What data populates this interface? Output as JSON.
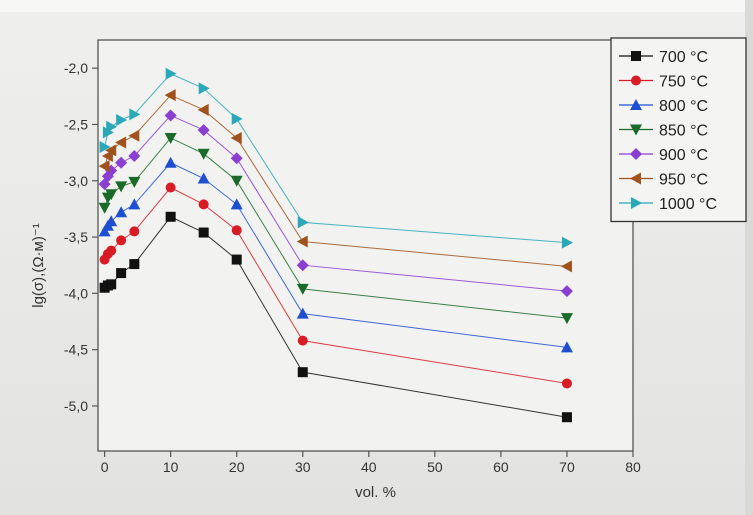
{
  "chart_data": {
    "type": "line",
    "xlabel": "vol. %",
    "ylabel": "lg(σ),(Ω·м)⁻¹",
    "xlim": [
      -1,
      80
    ],
    "ylim": [
      -5.4,
      -1.75
    ],
    "xticks": [
      0,
      10,
      20,
      30,
      40,
      50,
      60,
      70,
      80
    ],
    "yticks": [
      -2.0,
      -2.5,
      -3.0,
      -3.5,
      -4.0,
      -4.5,
      -5.0
    ],
    "xtick_labels": [
      "0",
      "10",
      "20",
      "30",
      "40",
      "50",
      "60",
      "70",
      "80"
    ],
    "ytick_labels": [
      "-2,0",
      "-2,5",
      "-3,0",
      "-3,5",
      "-4,0",
      "-4,5",
      "-5,0"
    ],
    "legend_position": "top-right",
    "x": [
      0,
      0.5,
      1,
      2.5,
      4.5,
      10,
      15,
      20,
      30,
      70
    ],
    "series": [
      {
        "name": "700 °C",
        "marker": "square",
        "color": "#111111",
        "values": [
          -3.95,
          -3.93,
          -3.92,
          -3.82,
          -3.74,
          -3.32,
          -3.46,
          -3.7,
          -4.7,
          -5.1
        ]
      },
      {
        "name": "750 °C",
        "marker": "circle",
        "color": "#d81b24",
        "values": [
          -3.7,
          -3.65,
          -3.62,
          -3.53,
          -3.45,
          -3.06,
          -3.21,
          -3.44,
          -4.42,
          -4.8
        ]
      },
      {
        "name": "800 °C",
        "marker": "triangle-up",
        "color": "#1f4fd1",
        "values": [
          -3.45,
          -3.4,
          -3.36,
          -3.28,
          -3.21,
          -2.84,
          -2.98,
          -3.21,
          -4.18,
          -4.48
        ]
      },
      {
        "name": "850 °C",
        "marker": "triangle-down",
        "color": "#1a6b2a",
        "values": [
          -3.24,
          -3.15,
          -3.12,
          -3.05,
          -3.01,
          -2.62,
          -2.76,
          -3.0,
          -3.96,
          -4.22
        ]
      },
      {
        "name": "900 °C",
        "marker": "diamond",
        "color": "#8a3fd1",
        "values": [
          -3.03,
          -2.96,
          -2.91,
          -2.84,
          -2.78,
          -2.42,
          -2.55,
          -2.8,
          -3.75,
          -3.98
        ]
      },
      {
        "name": "950 °C",
        "marker": "triangle-left",
        "color": "#a0521c",
        "values": [
          -2.87,
          -2.78,
          -2.73,
          -2.66,
          -2.6,
          -2.24,
          -2.37,
          -2.62,
          -3.54,
          -3.76
        ]
      },
      {
        "name": "1000 °C",
        "marker": "triangle-right",
        "color": "#2aa8b8",
        "values": [
          -2.7,
          -2.57,
          -2.52,
          -2.46,
          -2.41,
          -2.05,
          -2.18,
          -2.45,
          -3.37,
          -3.55
        ]
      }
    ]
  }
}
